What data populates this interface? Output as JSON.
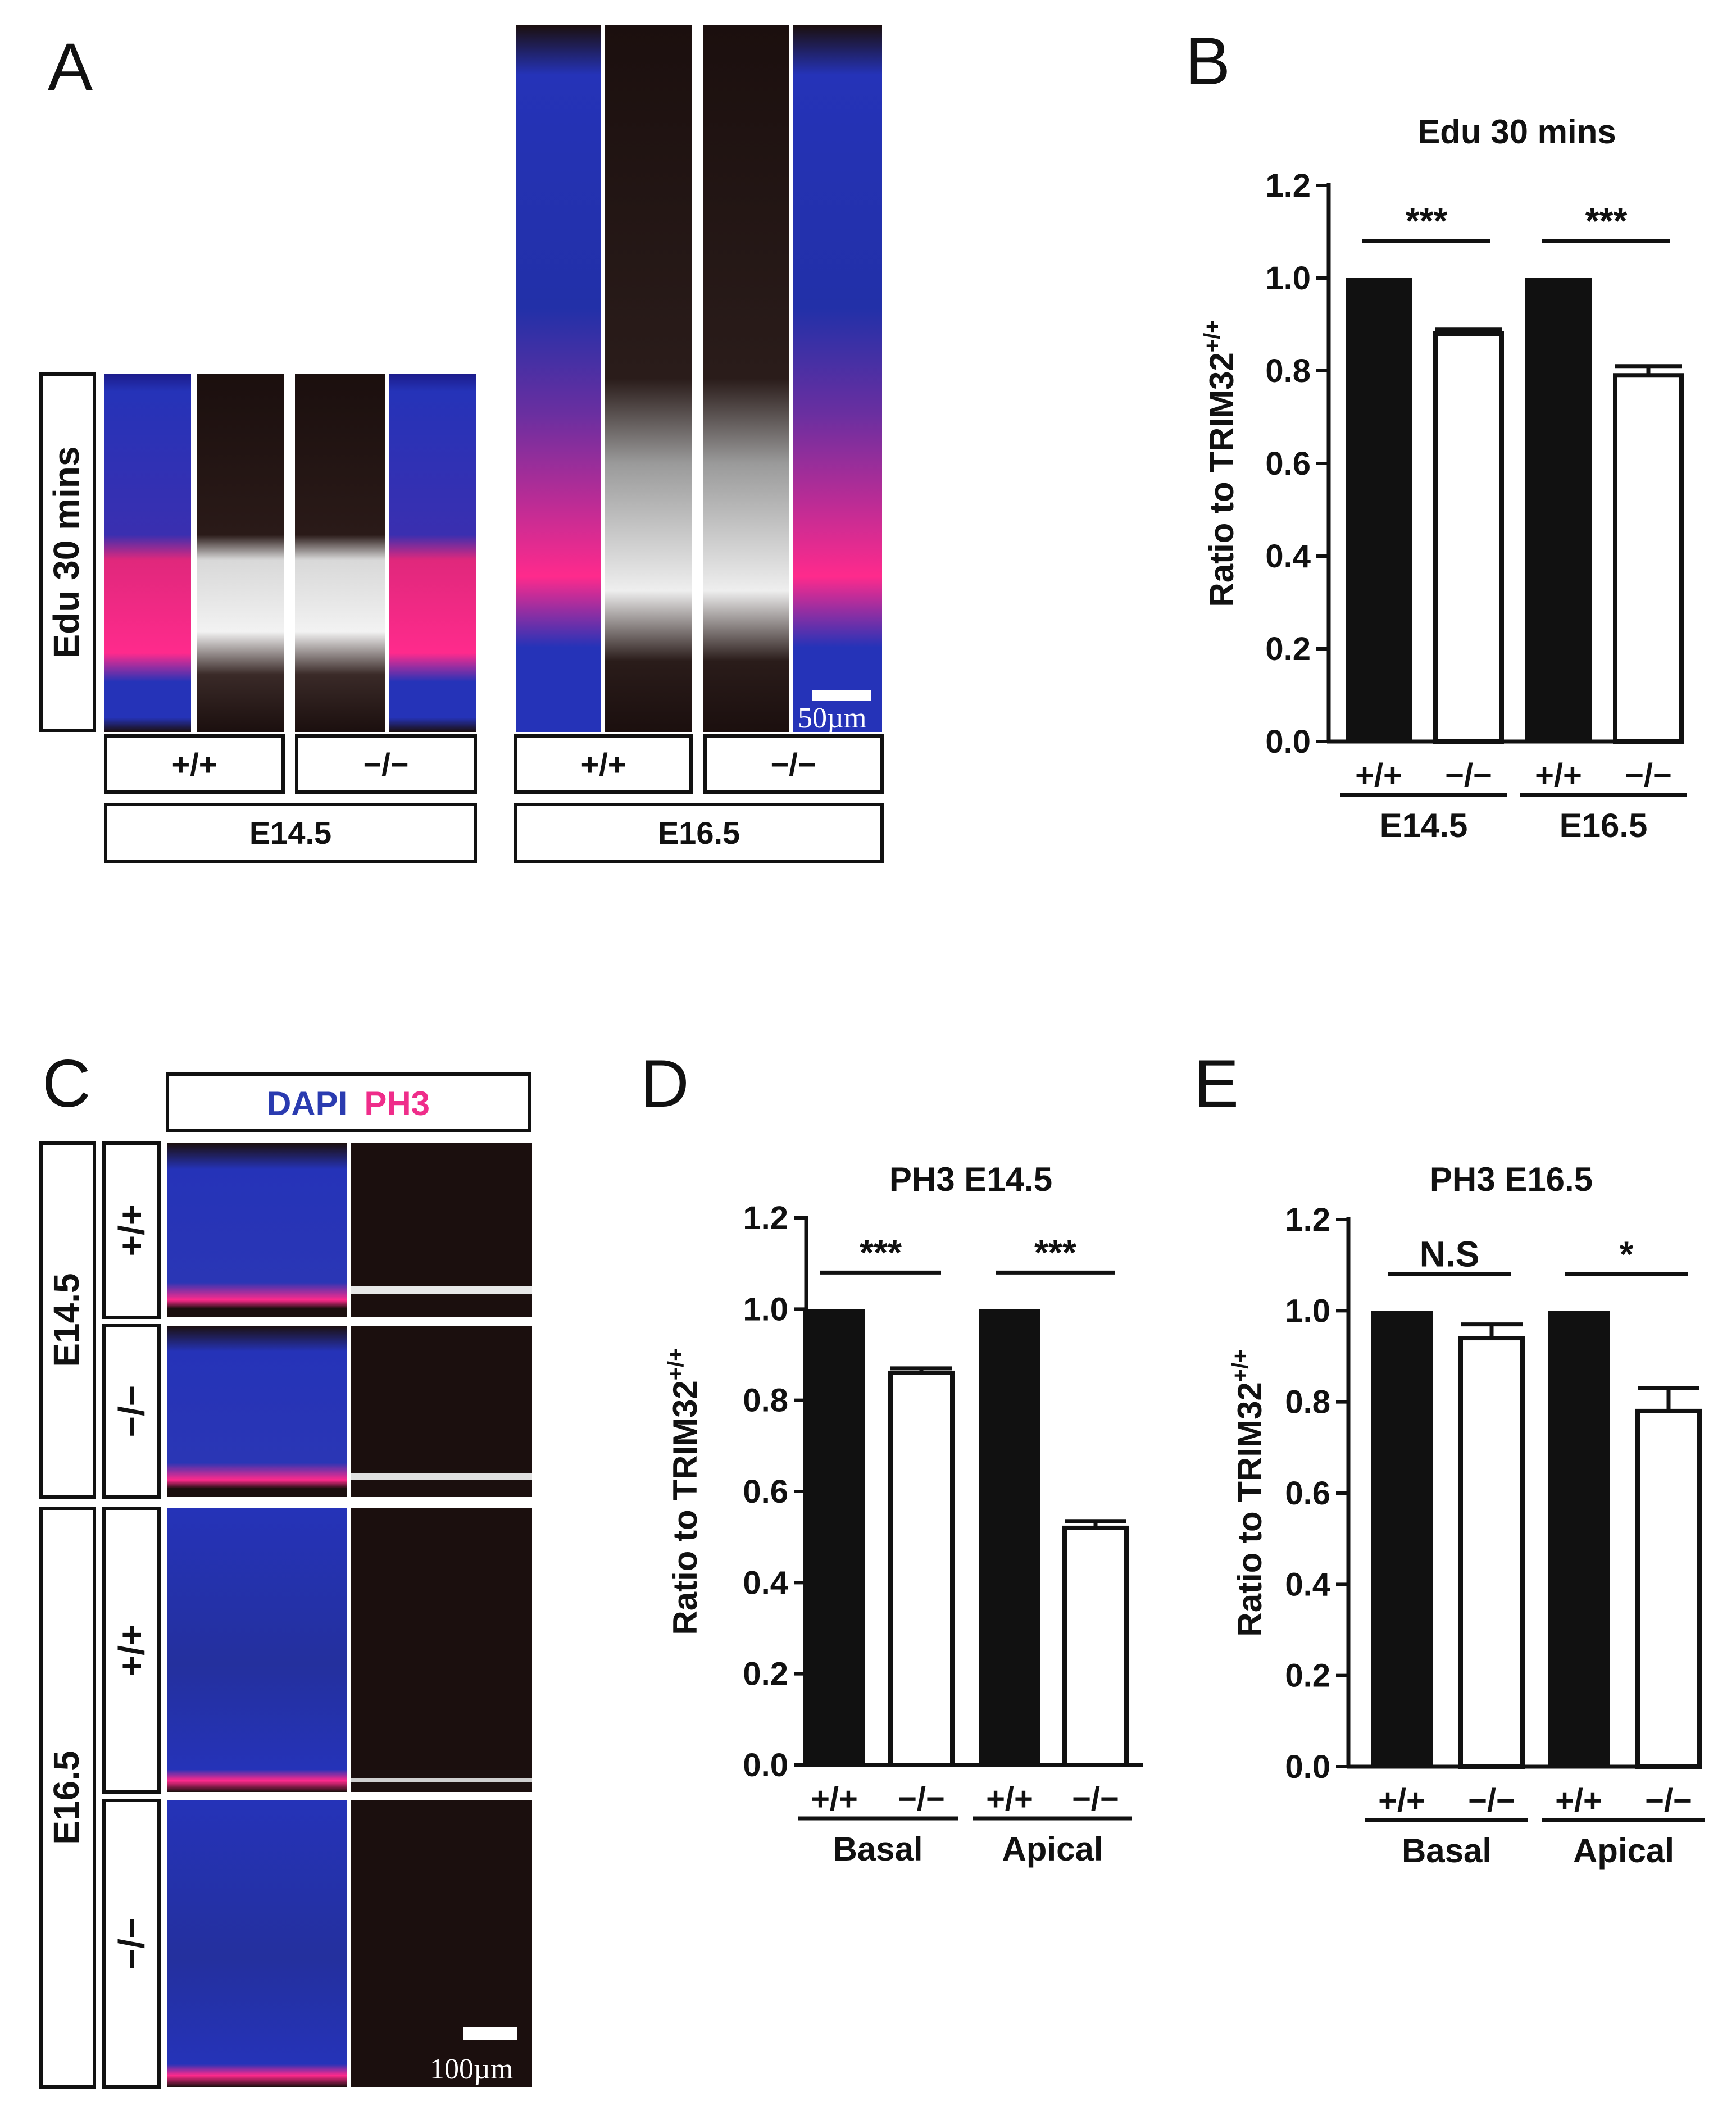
{
  "panels": {
    "A": {
      "letter": "A",
      "side_label": "Edu 30 mins",
      "genotype_labels": [
        "+/+",
        "−/−",
        "+/+",
        "−/−"
      ],
      "stage_labels": [
        "E14.5",
        "E16.5"
      ],
      "scale_bar": "50µm"
    },
    "C": {
      "letter": "C",
      "legend": {
        "dapi": "DAPI",
        "ph3": "PH3"
      },
      "stage_labels": [
        "E14.5",
        "E16.5"
      ],
      "genotype_labels": [
        "+/+",
        "−/−",
        "+/+",
        "−/−"
      ],
      "scale_bar": "100µm"
    }
  },
  "colors": {
    "dapi_blue": "#2533b8",
    "edu_magenta": "#ff2a8c",
    "marker_white": "#f2f2f2",
    "background_dark": "#1b0f0e"
  },
  "chart_data": [
    {
      "panel": "B",
      "type": "bar",
      "title": "Edu 30 mins",
      "ylabel": "Ratio to TRIM32",
      "ylabel_superscript": "+/+",
      "ylim": [
        0,
        1.2
      ],
      "yticks": [
        "0.0",
        "0.2",
        "0.4",
        "0.6",
        "0.8",
        "1.0",
        "1.2"
      ],
      "categories": [
        "+/+",
        "−/−",
        "+/+",
        "−/−"
      ],
      "groups": [
        "E14.5",
        "E16.5"
      ],
      "values": [
        1.0,
        0.88,
        1.0,
        0.79
      ],
      "errors": [
        0,
        0.01,
        0,
        0.02
      ],
      "fills": [
        "black",
        "white",
        "black",
        "white"
      ],
      "significance": [
        "***",
        "***"
      ]
    },
    {
      "panel": "D",
      "type": "bar",
      "title": "PH3  E14.5",
      "ylabel": "Ratio to TRIM32",
      "ylabel_superscript": "+/+",
      "ylim": [
        0,
        1.2
      ],
      "yticks": [
        "0.0",
        "0.2",
        "0.4",
        "0.6",
        "0.8",
        "1.0",
        "1.2"
      ],
      "categories": [
        "+/+",
        "−/−",
        "+/+",
        "−/−"
      ],
      "groups": [
        "Basal",
        "Apical"
      ],
      "values": [
        1.0,
        0.86,
        1.0,
        0.52
      ],
      "errors": [
        0,
        0.01,
        0,
        0.015
      ],
      "fills": [
        "black",
        "white",
        "black",
        "white"
      ],
      "significance": [
        "***",
        "***"
      ]
    },
    {
      "panel": "E",
      "type": "bar",
      "title": "PH3  E16.5",
      "ylabel": "Ratio to TRIM32",
      "ylabel_superscript": "+/+",
      "ylim": [
        0,
        1.2
      ],
      "yticks": [
        "0.0",
        "0.2",
        "0.4",
        "0.6",
        "0.8",
        "1.0",
        "1.2"
      ],
      "categories": [
        "+/+",
        "−/−",
        "+/+",
        "−/−"
      ],
      "groups": [
        "Basal",
        "Apical"
      ],
      "values": [
        1.0,
        0.94,
        1.0,
        0.78
      ],
      "errors": [
        0,
        0.03,
        0,
        0.05
      ],
      "fills": [
        "black",
        "white",
        "black",
        "white"
      ],
      "significance": [
        "N.S",
        "*"
      ]
    }
  ]
}
